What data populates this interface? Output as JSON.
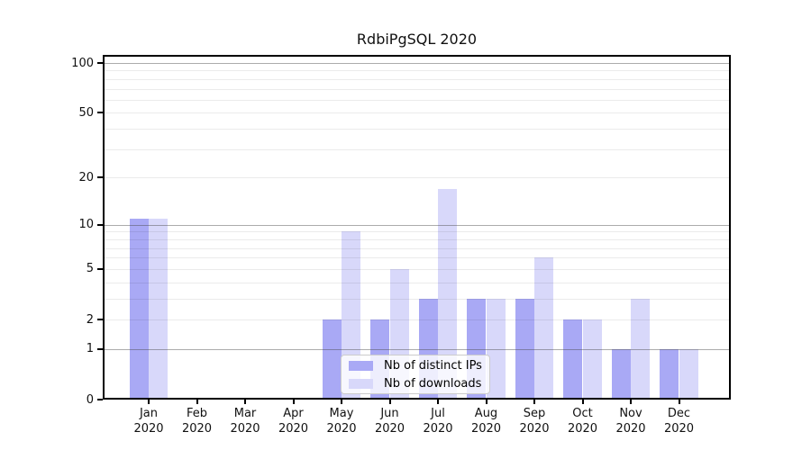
{
  "chart_data": {
    "type": "bar",
    "title": "RdbiPgSQL 2020",
    "categories": [
      "Jan",
      "Feb",
      "Mar",
      "Apr",
      "May",
      "Jun",
      "Jul",
      "Aug",
      "Sep",
      "Oct",
      "Nov",
      "Dec"
    ],
    "x_year": "2020",
    "series": [
      {
        "name": "Nb of distinct IPs",
        "color": "#a9a9f5",
        "values": [
          11,
          0,
          0,
          0,
          2,
          2,
          3,
          3,
          3,
          2,
          1,
          1
        ]
      },
      {
        "name": "Nb of downloads",
        "color": "#d8d8fa",
        "values": [
          11,
          0,
          0,
          0,
          9,
          5,
          17,
          3,
          6,
          2,
          3,
          1
        ]
      }
    ],
    "y_axis": {
      "scale": "log10(1+x)",
      "ylim": [
        0,
        100
      ],
      "tick_values": [
        0,
        1,
        2,
        5,
        10,
        20,
        50,
        100
      ],
      "tick_labels": [
        "0",
        "1",
        "2",
        "5",
        "10",
        "20",
        "50",
        "100"
      ],
      "minor_gridlines": [
        3,
        4,
        6,
        7,
        8,
        9,
        30,
        40,
        60,
        70,
        80,
        90
      ],
      "decade_gridlines": [
        1,
        10,
        100
      ]
    },
    "legend": {
      "position": "lower center",
      "entries": [
        {
          "label": "Nb of distinct IPs",
          "color": "#a9a9f5"
        },
        {
          "label": "Nb of downloads",
          "color": "#d8d8fa"
        }
      ]
    }
  }
}
